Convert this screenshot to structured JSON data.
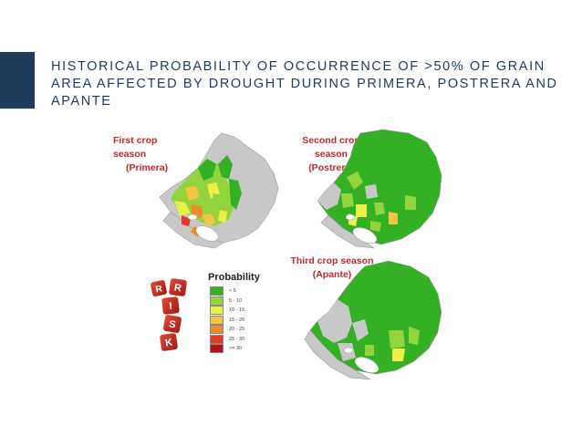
{
  "slide": {
    "title": "HISTORICAL PROBABILITY OF OCCURRENCE OF >50% OF GRAIN AREA AFFECTED BY DROUGHT DURING PRIMERA, POSTRERA AND APANTE"
  },
  "maps": [
    {
      "label_lines": [
        "First crop",
        "season",
        "(Primera)"
      ]
    },
    {
      "label_lines": [
        "Second crop season",
        "(Postrera)"
      ]
    },
    {
      "label_lines": [
        "Third crop season",
        "(Apante)"
      ]
    }
  ],
  "legend": {
    "title": "Probability",
    "items": [
      {
        "label": "< 5",
        "color": "#33b023"
      },
      {
        "label": "5 - 10",
        "color": "#93d33e"
      },
      {
        "label": "10 - 15",
        "color": "#eef04a"
      },
      {
        "label": "15 - 20",
        "color": "#f5c444"
      },
      {
        "label": "20 - 25",
        "color": "#ef8b2e"
      },
      {
        "label": "25 - 30",
        "color": "#e43b22"
      },
      {
        "label": ">= 30",
        "color": "#b5101b"
      }
    ]
  },
  "dice": {
    "letters": [
      "R",
      "I",
      "S",
      "K"
    ],
    "extra_letter": "R"
  },
  "colors": {
    "accent": "#1f3b5c",
    "label_red": "#c0282d",
    "no_data": "#c8c8c8",
    "lake": "#ffffff"
  }
}
